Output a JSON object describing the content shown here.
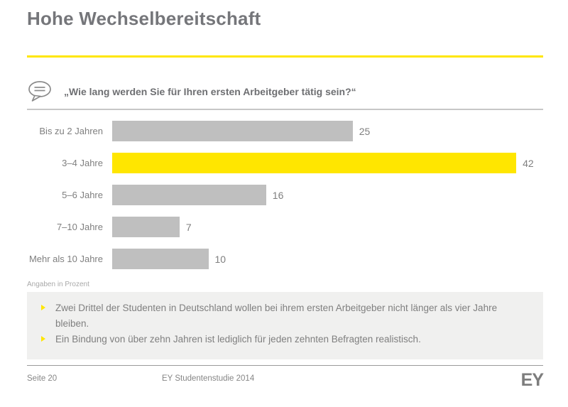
{
  "slide": {
    "title": "Hohe Wechselbereitschaft",
    "question": "„Wie lang werden Sie für Ihren ersten Arbeitgeber tätig sein?“",
    "note": "Angaben in Prozent",
    "bullets": [
      "Zwei Drittel der Studenten in Deutschland wollen bei ihrem ersten Arbeitgeber nicht länger als vier Jahre bleiben.",
      "Ein Bindung von über zehn Jahren ist lediglich für jeden zehnten Befragten realistisch."
    ],
    "footer": {
      "page_label": "Seite 20",
      "study_label": "EY Studentenstudie 2014",
      "logo_text": "EY"
    }
  },
  "chart_data": {
    "type": "bar",
    "orientation": "horizontal",
    "title": "Wie lang werden Sie für Ihren ersten Arbeitgeber tätig sein?",
    "categories": [
      "Bis zu 2 Jahren",
      "3–4 Jahre",
      "5–6 Jahre",
      "7–10 Jahre",
      "Mehr als 10 Jahre"
    ],
    "values": [
      25,
      42,
      16,
      7,
      10
    ],
    "value_unit": "Prozent",
    "highlight_index": 1,
    "bar_color": "#BFBFBF",
    "highlight_color": "#FFE600",
    "xlim": [
      0,
      44
    ],
    "grid": false,
    "legend": false,
    "data_labels": true
  },
  "colors": {
    "accent_yellow": "#FFE600",
    "title_gray": "#75767A",
    "text_gray": "#7F7F7F",
    "bar_gray": "#BFBFBF",
    "box_background": "#F0F0EF",
    "icon_gray": "#8A8A8A"
  }
}
